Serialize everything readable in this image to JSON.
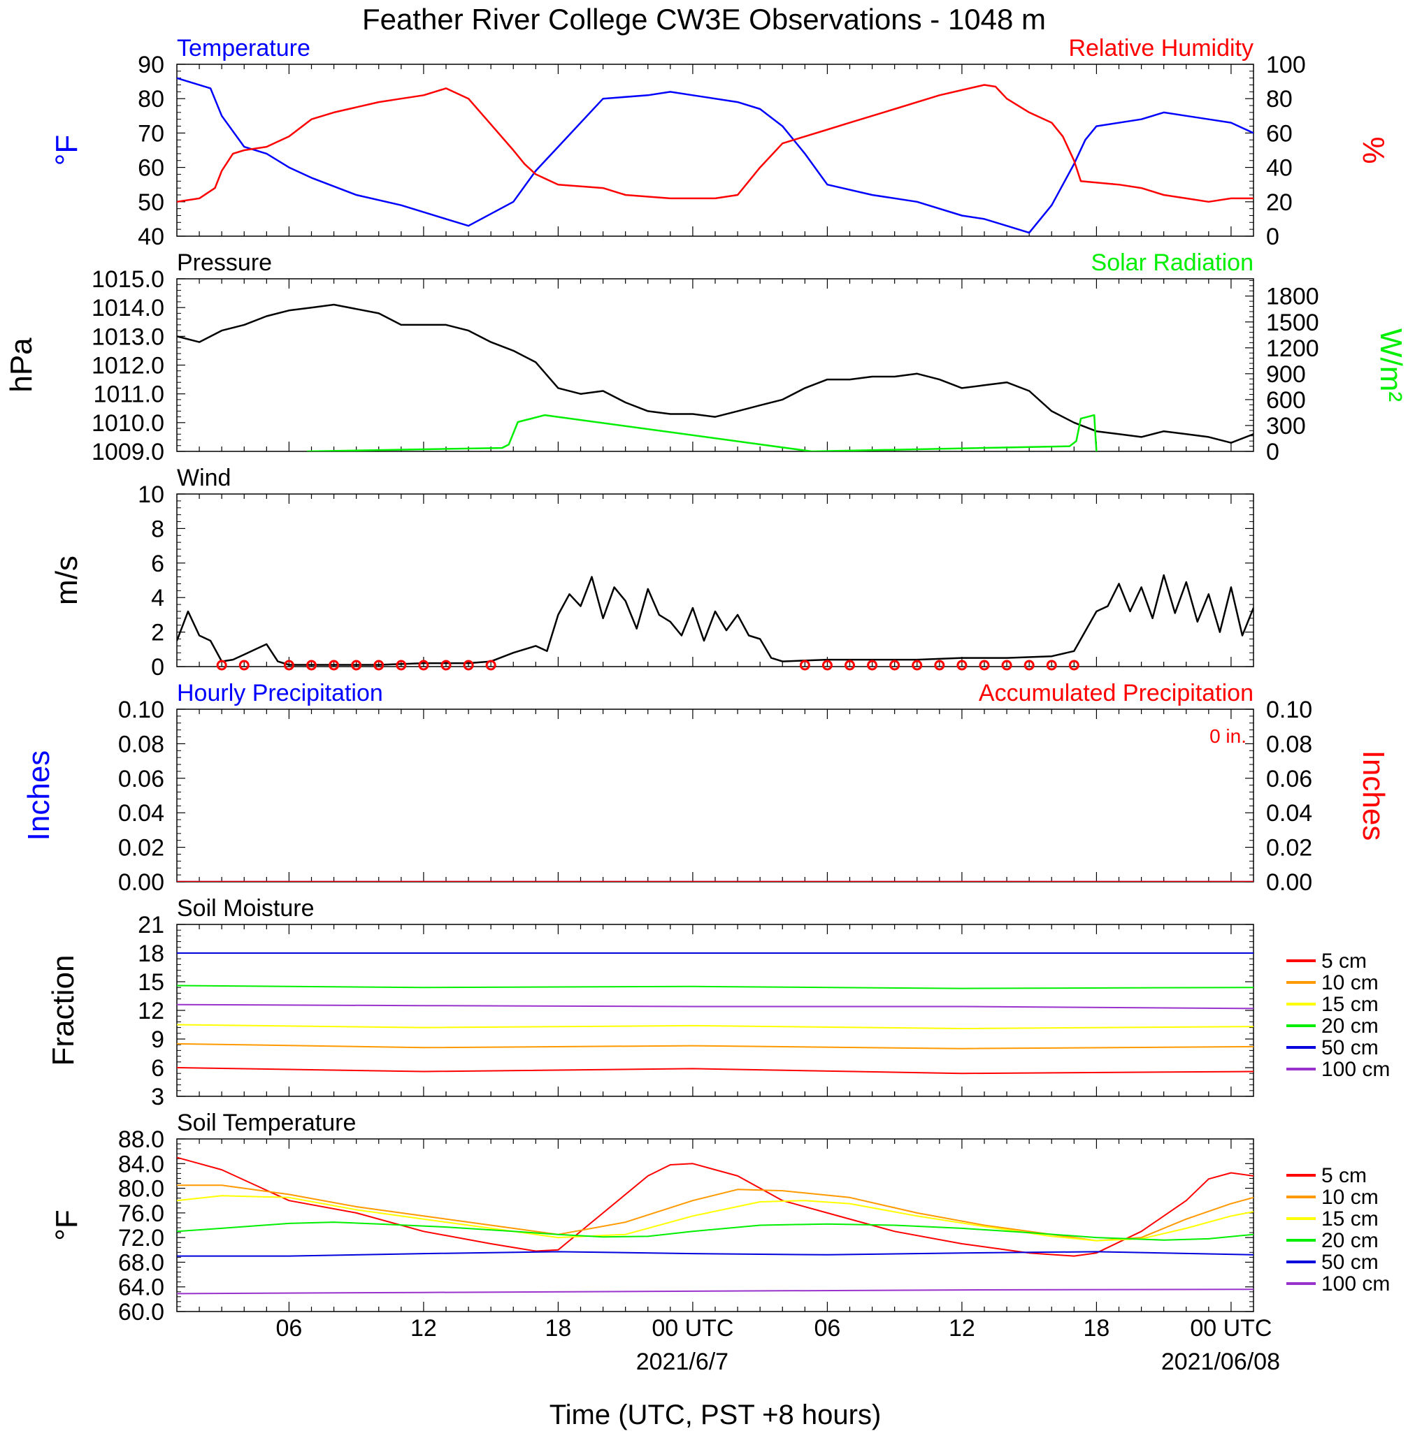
{
  "title": "Feather River College CW3E Observations - 1048 m",
  "colors": {
    "temperature": "#0000ff",
    "humidity": "#ff0000",
    "pressure": "#000000",
    "solar": "#00ee00",
    "soil_5": "#ff0000",
    "soil_10": "#ff9900",
    "soil_15": "#ffff00",
    "soil_20": "#00ee00",
    "soil_50": "#0000dd",
    "soil_100": "#9933cc"
  },
  "x_axis": {
    "label": "Time (UTC, PST +8 hours)",
    "range_hours": [
      1,
      49
    ],
    "ticks": [
      {
        "hour": 6,
        "label": "06"
      },
      {
        "hour": 12,
        "label": "12"
      },
      {
        "hour": 18,
        "label": "18"
      },
      {
        "hour": 24,
        "label": "00 UTC"
      },
      {
        "hour": 30,
        "label": "06"
      },
      {
        "hour": 36,
        "label": "12"
      },
      {
        "hour": 42,
        "label": "18"
      },
      {
        "hour": 48,
        "label": "00 UTC"
      }
    ],
    "date_labels": [
      {
        "hour": 24,
        "label": "2021/6/7"
      },
      {
        "hour": 48,
        "label": "2021/06/08"
      }
    ]
  },
  "chart_data": [
    {
      "type": "line",
      "key": "temp_rh",
      "title_left": "Temperature",
      "title_right": "Relative Humidity",
      "ylabel_left": "°F",
      "ylabel_right": "%",
      "ylim_left": [
        40,
        90
      ],
      "ylim_right": [
        0,
        100
      ],
      "yticks_left": [
        "40",
        "50",
        "60",
        "70",
        "80",
        "90"
      ],
      "yticks_right": [
        "0",
        "20",
        "40",
        "60",
        "80",
        "100"
      ],
      "series": [
        {
          "name": "Temperature",
          "axis": "left",
          "color_key": "temperature",
          "x": [
            1,
            2.5,
            3,
            4,
            5,
            6,
            7,
            9,
            11,
            12,
            13,
            14,
            16,
            17,
            18,
            20,
            22,
            23,
            24,
            26,
            27,
            28,
            29,
            30,
            32,
            34,
            36,
            37,
            38,
            39,
            40,
            41,
            41.5,
            42,
            44,
            45,
            46,
            47,
            48,
            49
          ],
          "y": [
            86,
            83,
            75,
            66,
            64,
            60,
            57,
            52,
            49,
            47,
            45,
            43,
            50,
            59,
            66,
            80,
            81,
            82,
            81,
            79,
            77,
            72,
            64,
            55,
            52,
            50,
            46,
            45,
            43,
            41,
            49,
            61,
            68,
            72,
            74,
            76,
            75,
            74,
            73,
            70
          ]
        },
        {
          "name": "Relative Humidity",
          "axis": "right",
          "color_key": "humidity",
          "x": [
            1,
            2,
            2.7,
            3,
            3.5,
            4,
            5,
            6,
            7,
            8,
            10,
            11,
            12,
            13,
            14,
            15,
            16,
            16.5,
            17,
            18,
            20,
            21,
            23,
            25,
            26,
            27,
            28,
            29,
            30,
            31,
            32,
            33,
            35,
            36,
            37,
            37.5,
            38,
            39,
            40,
            40.5,
            41,
            41.3,
            43,
            44,
            45,
            46,
            47,
            48,
            49
          ],
          "y": [
            20,
            22,
            28,
            38,
            48,
            50,
            52,
            58,
            68,
            72,
            78,
            80,
            82,
            86,
            80,
            65,
            50,
            42,
            36,
            30,
            28,
            24,
            22,
            22,
            24,
            40,
            54,
            58,
            62,
            66,
            70,
            74,
            82,
            85,
            88,
            87,
            80,
            72,
            66,
            58,
            44,
            32,
            30,
            28,
            24,
            22,
            20,
            22,
            22
          ]
        }
      ]
    },
    {
      "type": "line",
      "key": "pressure_solar",
      "title_left": "Pressure",
      "title_right": "Solar Radiation",
      "ylabel_left": "hPa",
      "ylabel_right": "W/m²",
      "ylim_left": [
        1009,
        1015
      ],
      "ylim_right": [
        0,
        2000
      ],
      "yticks_left": [
        "1009.0",
        "1010.0",
        "1011.0",
        "1012.0",
        "1013.0",
        "1014.0",
        "1015.0"
      ],
      "yticks_right": [
        "0",
        "300",
        "600",
        "900",
        "1200",
        "1500",
        "1800"
      ],
      "series": [
        {
          "name": "Pressure",
          "axis": "left",
          "color_key": "pressure",
          "x": [
            1,
            2,
            3,
            4,
            5,
            6,
            7,
            8,
            10,
            11,
            12,
            13,
            14,
            15,
            16,
            17,
            18,
            19,
            20,
            21,
            22,
            23,
            24,
            25,
            26,
            27,
            28,
            29,
            30,
            31,
            32,
            33,
            34,
            35,
            36,
            37,
            38,
            39,
            40,
            41,
            42,
            43,
            44,
            45,
            46,
            47,
            48,
            49
          ],
          "y": [
            1013.0,
            1012.8,
            1013.2,
            1013.4,
            1013.7,
            1013.9,
            1014.0,
            1014.1,
            1013.8,
            1013.4,
            1013.4,
            1013.4,
            1013.2,
            1012.8,
            1012.5,
            1012.1,
            1011.2,
            1011.0,
            1011.1,
            1010.7,
            1010.4,
            1010.3,
            1010.3,
            1010.2,
            1010.4,
            1010.6,
            1010.8,
            1011.2,
            1011.5,
            1011.5,
            1011.6,
            1011.6,
            1011.7,
            1011.5,
            1011.2,
            1011.3,
            1011.4,
            1011.1,
            1010.4,
            1010.0,
            1009.7,
            1009.6,
            1009.5,
            1009.7,
            1009.6,
            1009.5,
            1009.3,
            1009.6
          ]
        },
        {
          "name": "Solar Radiation",
          "axis": "right",
          "color_key": "solar",
          "x": [
            6.8,
            15.5,
            15.8,
            16.2,
            16.5,
            16.8,
            17.4,
            29.3,
            40.8,
            41.1,
            41.3,
            41.6,
            41.9,
            41.95,
            42.0
          ],
          "y": [
            0,
            40,
            80,
            340,
            360,
            380,
            420,
            0,
            60,
            120,
            380,
            400,
            420,
            200,
            0
          ]
        }
      ]
    },
    {
      "type": "line",
      "key": "wind",
      "title_left": "Wind",
      "ylabel_left": "m/s",
      "ylim_left": [
        0,
        10
      ],
      "yticks_left": [
        "0",
        "2",
        "4",
        "6",
        "8",
        "10"
      ],
      "series": [
        {
          "name": "Wind",
          "axis": "left",
          "color_key": "pressure",
          "x": [
            1,
            1.5,
            2,
            2.5,
            3,
            3.5,
            4,
            4.5,
            5,
            5.5,
            6,
            8,
            10,
            12,
            14,
            15,
            16,
            17,
            17.5,
            18,
            18.5,
            19,
            19.5,
            20,
            20.5,
            21,
            21.5,
            22,
            22.5,
            23,
            23.5,
            24,
            24.5,
            25,
            25.5,
            26,
            26.5,
            27,
            27.5,
            28,
            30,
            32,
            34,
            36,
            38,
            40,
            41,
            42,
            42.5,
            43,
            43.5,
            44,
            44.5,
            45,
            45.5,
            46,
            46.5,
            47,
            47.5,
            48,
            48.5,
            49
          ],
          "y": [
            1.5,
            3.2,
            1.8,
            1.5,
            0.3,
            0.4,
            0.7,
            1.0,
            1.3,
            0.3,
            0.1,
            0.1,
            0.1,
            0.2,
            0.2,
            0.3,
            0.8,
            1.2,
            0.9,
            3.0,
            4.2,
            3.5,
            5.2,
            2.8,
            4.6,
            3.8,
            2.2,
            4.5,
            3.0,
            2.6,
            1.8,
            3.4,
            1.5,
            3.2,
            2.1,
            3.0,
            1.8,
            1.6,
            0.5,
            0.3,
            0.4,
            0.4,
            0.4,
            0.5,
            0.5,
            0.6,
            0.9,
            3.2,
            3.5,
            4.8,
            3.2,
            4.6,
            2.8,
            5.3,
            3.1,
            4.9,
            2.6,
            4.2,
            2.0,
            4.6,
            1.8,
            3.4
          ]
        }
      ],
      "barbs_calm_hours": [
        3,
        4,
        6,
        7,
        8,
        9,
        10,
        11,
        12,
        13,
        14,
        15,
        29,
        30,
        31,
        32,
        33,
        34,
        35,
        36,
        37,
        38,
        39,
        40,
        41
      ]
    },
    {
      "type": "line",
      "key": "precip",
      "title_left": "Hourly Precipitation",
      "title_right": "Accumulated Precipitation",
      "annotation": "0 in.",
      "ylabel_left": "Inches",
      "ylabel_right": "Inches",
      "ylim_left": [
        0,
        0.1
      ],
      "ylim_right": [
        0,
        0.1
      ],
      "yticks_left": [
        "0.00",
        "0.02",
        "0.04",
        "0.06",
        "0.08",
        "0.10"
      ],
      "yticks_right": [
        "0.00",
        "0.02",
        "0.04",
        "0.06",
        "0.08",
        "0.10"
      ],
      "series": [
        {
          "name": "Hourly Precipitation",
          "axis": "left",
          "color_key": "temperature",
          "x": [
            1,
            49
          ],
          "y": [
            0,
            0
          ]
        },
        {
          "name": "Accumulated Precipitation",
          "axis": "right",
          "color_key": "humidity",
          "x": [
            1,
            49
          ],
          "y": [
            0,
            0
          ]
        }
      ]
    },
    {
      "type": "line",
      "key": "soil_moisture",
      "title_left": "Soil Moisture",
      "ylabel_left": "Fraction",
      "ylim_left": [
        3,
        21
      ],
      "yticks_left": [
        "3",
        "6",
        "9",
        "12",
        "15",
        "18",
        "21"
      ],
      "series": [
        {
          "name": "5 cm",
          "color_key": "soil_5",
          "x": [
            1,
            12,
            24,
            36,
            49
          ],
          "y": [
            6.0,
            5.6,
            5.9,
            5.4,
            5.6
          ]
        },
        {
          "name": "10 cm",
          "color_key": "soil_10",
          "x": [
            1,
            12,
            24,
            36,
            49
          ],
          "y": [
            8.5,
            8.1,
            8.3,
            8.0,
            8.2
          ]
        },
        {
          "name": "15 cm",
          "color_key": "soil_15",
          "x": [
            1,
            12,
            24,
            36,
            49
          ],
          "y": [
            10.5,
            10.2,
            10.4,
            10.1,
            10.3
          ]
        },
        {
          "name": "20 cm",
          "color_key": "soil_20",
          "x": [
            1,
            12,
            24,
            36,
            49
          ],
          "y": [
            14.6,
            14.4,
            14.5,
            14.3,
            14.4
          ]
        },
        {
          "name": "50 cm",
          "color_key": "soil_50",
          "x": [
            1,
            12,
            24,
            36,
            49
          ],
          "y": [
            18.0,
            18.0,
            18.0,
            18.0,
            18.0
          ]
        },
        {
          "name": "100 cm",
          "color_key": "soil_100",
          "x": [
            1,
            12,
            24,
            36,
            49
          ],
          "y": [
            12.6,
            12.5,
            12.4,
            12.4,
            12.2
          ]
        }
      ]
    },
    {
      "type": "line",
      "key": "soil_temp",
      "title_left": "Soil Temperature",
      "ylabel_left": "°F",
      "ylim_left": [
        60,
        88
      ],
      "yticks_left": [
        "60.0",
        "64.0",
        "68.0",
        "72.0",
        "76.0",
        "80.0",
        "84.0",
        "88.0"
      ],
      "series": [
        {
          "name": "5 cm",
          "color_key": "soil_5",
          "x": [
            1,
            3,
            6,
            9,
            12,
            15,
            17,
            18,
            20,
            22,
            23,
            24,
            26,
            28,
            30,
            33,
            36,
            39,
            41,
            42,
            44,
            46,
            47,
            48,
            49
          ],
          "y": [
            85,
            83,
            78,
            76,
            73,
            71,
            69.8,
            70,
            76,
            82,
            83.8,
            84,
            82,
            78,
            76,
            73,
            71,
            69.5,
            69,
            69.5,
            73,
            78,
            81.5,
            82.5,
            82
          ]
        },
        {
          "name": "10 cm",
          "color_key": "soil_10",
          "x": [
            1,
            3,
            6,
            9,
            12,
            15,
            18,
            21,
            24,
            26,
            28,
            31,
            34,
            37,
            40,
            42,
            44,
            46,
            48,
            49
          ],
          "y": [
            80.5,
            80.5,
            79,
            77,
            75.5,
            74,
            72.5,
            74.5,
            78,
            79.8,
            79.6,
            78.5,
            76,
            74,
            72.5,
            71.5,
            72,
            75,
            77.5,
            78.5
          ]
        },
        {
          "name": "15 cm",
          "color_key": "soil_15",
          "x": [
            1,
            3,
            6,
            9,
            12,
            15,
            18,
            21,
            24,
            27,
            29,
            31,
            34,
            37,
            40,
            42,
            44,
            46,
            48,
            49
          ],
          "y": [
            78,
            78.8,
            78.5,
            76.5,
            75,
            73.5,
            72,
            72.5,
            75.5,
            77.8,
            78,
            77.5,
            75.5,
            73.8,
            72.2,
            71.5,
            71.8,
            73.5,
            75.5,
            76.2
          ]
        },
        {
          "name": "20 cm",
          "color_key": "soil_20",
          "x": [
            1,
            3,
            6,
            8,
            10,
            13,
            16,
            18,
            20,
            22,
            24,
            27,
            30,
            33,
            36,
            39,
            42,
            45,
            47,
            49
          ],
          "y": [
            73,
            73.5,
            74.3,
            74.5,
            74.2,
            73.7,
            73,
            72.5,
            72.1,
            72.2,
            73,
            74,
            74.2,
            74,
            73.5,
            72.8,
            72,
            71.6,
            71.8,
            72.5
          ]
        },
        {
          "name": "50 cm",
          "color_key": "soil_50",
          "x": [
            1,
            6,
            12,
            18,
            24,
            30,
            36,
            42,
            49
          ],
          "y": [
            69,
            69,
            69.4,
            69.7,
            69.4,
            69.2,
            69.5,
            69.7,
            69.2
          ]
        },
        {
          "name": "100 cm",
          "color_key": "soil_100",
          "x": [
            1,
            12,
            24,
            36,
            49
          ],
          "y": [
            62.9,
            63.1,
            63.3,
            63.5,
            63.6
          ]
        }
      ]
    }
  ],
  "legend_labels": [
    "5 cm",
    "10 cm",
    "15 cm",
    "20 cm",
    "50 cm",
    "100 cm"
  ]
}
